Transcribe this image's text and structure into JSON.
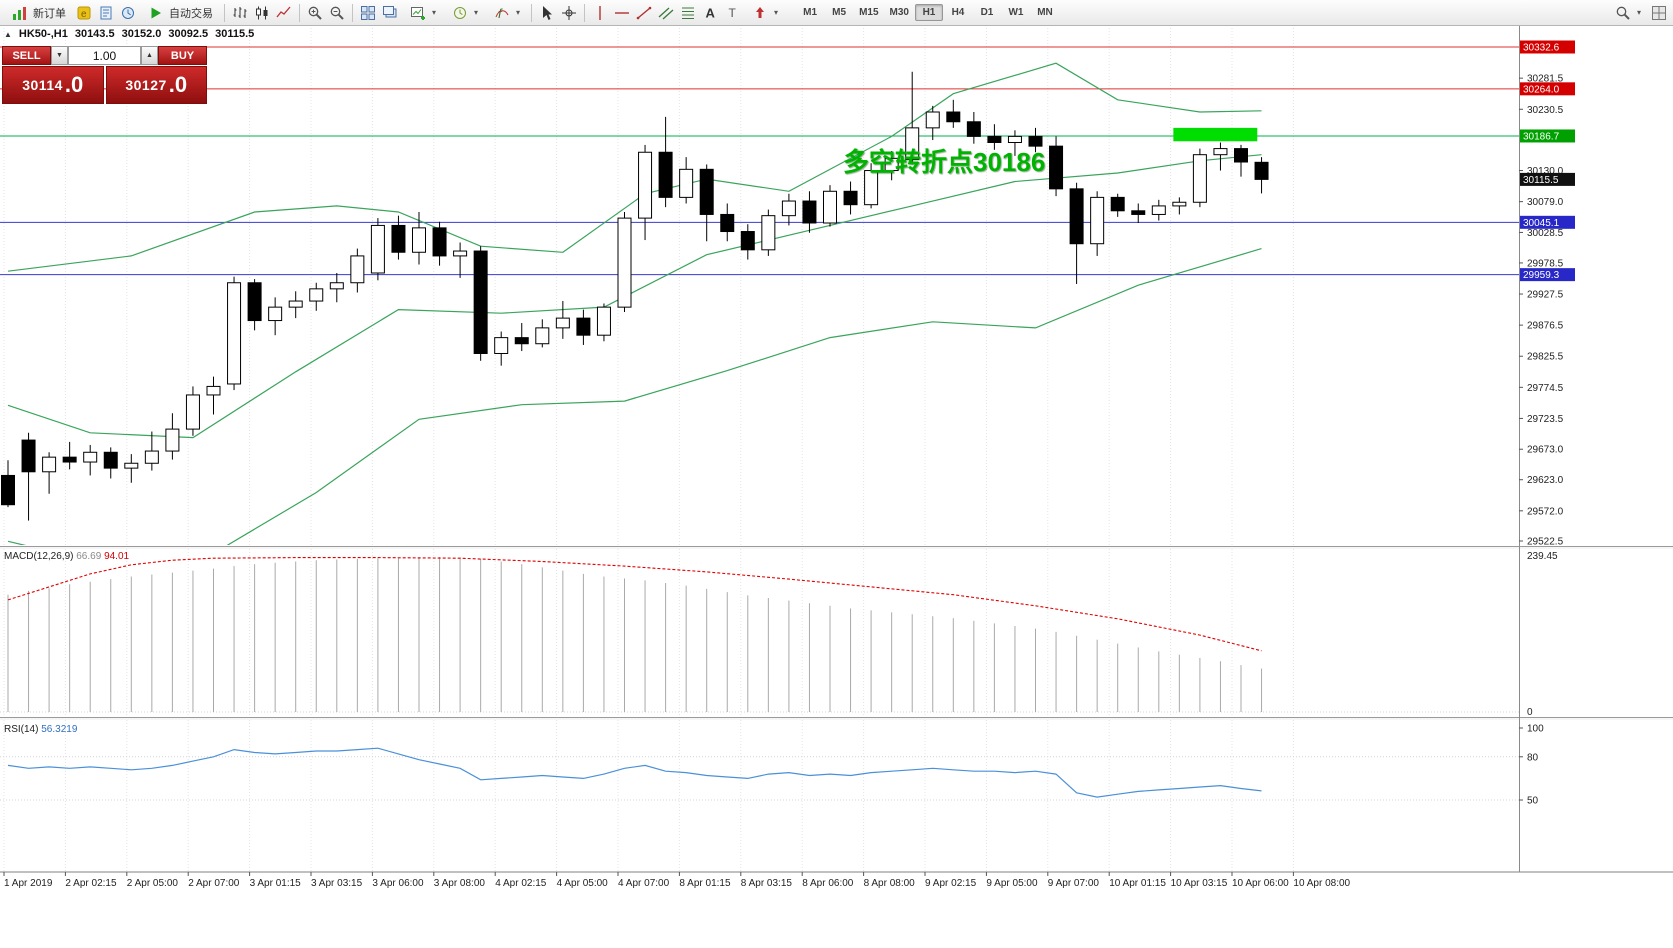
{
  "toolbar": {
    "new_order_label": "新订单",
    "autotrading_label": "自动交易",
    "caret": "▾",
    "timeframes": {
      "items": [
        "M1",
        "M5",
        "M15",
        "M30",
        "H1",
        "H4",
        "D1",
        "W1",
        "MN"
      ],
      "active": "H1"
    },
    "icon_names": [
      "new-order-icon",
      "metaeditor-icon",
      "profiles-icon",
      "market-watch-icon",
      "play-icon",
      "bar-chart-icon",
      "candlestick-chart-icon",
      "line-chart-icon",
      "zoom-in-icon",
      "zoom-out-icon",
      "tile-windows-icon",
      "cascade-windows-icon",
      "new-chart-icon",
      "period-icon",
      "indicators-icon",
      "cursor-icon",
      "crosshair-icon",
      "vertical-line-icon",
      "horizontal-line-icon",
      "trendline-icon",
      "channel-icon",
      "fibonacci-icon",
      "text-tool-icon",
      "label-tool-icon",
      "arrows-tool-icon",
      "search-icon",
      "layout-icon"
    ]
  },
  "quote_bar": {
    "expander": "▲",
    "symbol": "HK50-,H1",
    "open": "30143.5",
    "high": "30152.0",
    "low": "30092.5",
    "close": "30115.5"
  },
  "trade_panel": {
    "sell_label": "SELL",
    "buy_label": "BUY",
    "volume": "1.00",
    "spinner_down": "▼",
    "spinner_up": "▲",
    "sell_price": "30114",
    "sell_price_frac": ".0",
    "buy_price": "30127",
    "buy_price_frac": ".0",
    "panel_color": "#c01e1e"
  },
  "annotation": {
    "text": "多空转折点30186",
    "color": "#00b300"
  },
  "chart_data": {
    "type": "candlestick",
    "symbol": "HK50",
    "timeframe": "H1",
    "y_axis": {
      "max": 30332.6,
      "min": 29522.5,
      "ticks": [
        30281.5,
        30230.5,
        30130.0,
        30079.0,
        30028.5,
        29978.5,
        29927.5,
        29876.5,
        29825.5,
        29774.5,
        29723.5,
        29673.0,
        29623.0,
        29572.0,
        29522.5
      ]
    },
    "price_lines": [
      {
        "price": 30332.6,
        "color": "#e03030",
        "badge": "#d40000",
        "type": "resistance"
      },
      {
        "price": 30264.0,
        "color": "#e03030",
        "badge": "#d40000",
        "type": "resistance"
      },
      {
        "price": 30186.7,
        "color": "#00b050",
        "badge": "#00a000",
        "type": "pivot"
      },
      {
        "price": 30045.1,
        "color": "#3a3ad0",
        "badge": "#2828c8",
        "type": "support"
      },
      {
        "price": 29959.3,
        "color": "#3a3ad0",
        "badge": "#2828c8",
        "type": "support"
      }
    ],
    "current_price": {
      "value": 30115.5,
      "badge": "#111111"
    },
    "highlight_box": {
      "bar_from": 57,
      "bar_to": 60.5,
      "price_from": 30178,
      "price_to": 30200,
      "color": "#00dd00"
    },
    "candles": [
      [
        29630,
        29655,
        29578,
        29582
      ],
      [
        29688,
        29700,
        29556,
        29636
      ],
      [
        29636,
        29668,
        29600,
        29660
      ],
      [
        29660,
        29685,
        29640,
        29652
      ],
      [
        29652,
        29680,
        29630,
        29668
      ],
      [
        29668,
        29676,
        29625,
        29642
      ],
      [
        29642,
        29665,
        29618,
        29650
      ],
      [
        29650,
        29702,
        29638,
        29670
      ],
      [
        29670,
        29732,
        29656,
        29706
      ],
      [
        29706,
        29776,
        29695,
        29762
      ],
      [
        29762,
        29792,
        29730,
        29776
      ],
      [
        29780,
        29956,
        29770,
        29946
      ],
      [
        29946,
        29952,
        29868,
        29884
      ],
      [
        29884,
        29922,
        29860,
        29906
      ],
      [
        29906,
        29932,
        29888,
        29916
      ],
      [
        29916,
        29946,
        29900,
        29936
      ],
      [
        29936,
        29962,
        29914,
        29946
      ],
      [
        29946,
        30002,
        29930,
        29990
      ],
      [
        29962,
        30052,
        29950,
        30040
      ],
      [
        30040,
        30056,
        29984,
        29996
      ],
      [
        29996,
        30062,
        29976,
        30036
      ],
      [
        30036,
        30046,
        29974,
        29990
      ],
      [
        29990,
        30012,
        29954,
        29998
      ],
      [
        29998,
        30006,
        29818,
        29830
      ],
      [
        29830,
        29866,
        29810,
        29856
      ],
      [
        29856,
        29880,
        29834,
        29846
      ],
      [
        29846,
        29886,
        29840,
        29872
      ],
      [
        29872,
        29916,
        29854,
        29888
      ],
      [
        29888,
        29902,
        29844,
        29860
      ],
      [
        29860,
        29912,
        29850,
        29906
      ],
      [
        29906,
        30062,
        29898,
        30052
      ],
      [
        30052,
        30172,
        30016,
        30160
      ],
      [
        30160,
        30218,
        30070,
        30086
      ],
      [
        30086,
        30152,
        30076,
        30132
      ],
      [
        30132,
        30140,
        30014,
        30058
      ],
      [
        30058,
        30076,
        30014,
        30030
      ],
      [
        30030,
        30042,
        29984,
        30000
      ],
      [
        30000,
        30066,
        29990,
        30056
      ],
      [
        30056,
        30092,
        30040,
        30080
      ],
      [
        30080,
        30096,
        30028,
        30044
      ],
      [
        30044,
        30106,
        30038,
        30096
      ],
      [
        30096,
        30112,
        30058,
        30074
      ],
      [
        30074,
        30142,
        30068,
        30130
      ],
      [
        30130,
        30162,
        30114,
        30150
      ],
      [
        30148,
        30292,
        30140,
        30200
      ],
      [
        30200,
        30236,
        30180,
        30226
      ],
      [
        30226,
        30246,
        30200,
        30210
      ],
      [
        30210,
        30226,
        30174,
        30186
      ],
      [
        30186,
        30206,
        30164,
        30176
      ],
      [
        30176,
        30196,
        30154,
        30186
      ],
      [
        30186,
        30200,
        30160,
        30170
      ],
      [
        30170,
        30186,
        30088,
        30100
      ],
      [
        30100,
        30110,
        29944,
        30010
      ],
      [
        30010,
        30096,
        29990,
        30086
      ],
      [
        30086,
        30092,
        30054,
        30064
      ],
      [
        30064,
        30076,
        30044,
        30058
      ],
      [
        30058,
        30082,
        30048,
        30072
      ],
      [
        30072,
        30086,
        30058,
        30078
      ],
      [
        30078,
        30166,
        30070,
        30156
      ],
      [
        30156,
        30176,
        30130,
        30166
      ],
      [
        30166,
        30172,
        30120,
        30144
      ],
      [
        30143.5,
        30152,
        30092.5,
        30115.5
      ]
    ],
    "bollinger": {
      "color": "#3aa45c",
      "upper": [
        [
          0,
          29965
        ],
        [
          6,
          29990
        ],
        [
          12,
          30062
        ],
        [
          16,
          30072
        ],
        [
          19,
          30062
        ],
        [
          23,
          30006
        ],
        [
          27,
          29996
        ],
        [
          31,
          30092
        ],
        [
          34,
          30116
        ],
        [
          38,
          30096
        ],
        [
          43,
          30186
        ],
        [
          46,
          30256
        ],
        [
          51,
          30306
        ],
        [
          54,
          30246
        ],
        [
          58,
          30226
        ],
        [
          61,
          30228
        ]
      ],
      "middle": [
        [
          0,
          29745
        ],
        [
          4,
          29700
        ],
        [
          9,
          29692
        ],
        [
          14,
          29800
        ],
        [
          19,
          29902
        ],
        [
          24,
          29896
        ],
        [
          29,
          29906
        ],
        [
          34,
          29992
        ],
        [
          39,
          30032
        ],
        [
          44,
          30072
        ],
        [
          49,
          30112
        ],
        [
          54,
          30126
        ],
        [
          58,
          30146
        ],
        [
          61,
          30156
        ]
      ],
      "lower": [
        [
          0,
          29522
        ],
        [
          5,
          29482
        ],
        [
          10,
          29502
        ],
        [
          15,
          29602
        ],
        [
          20,
          29722
        ],
        [
          25,
          29746
        ],
        [
          30,
          29752
        ],
        [
          35,
          29802
        ],
        [
          40,
          29856
        ],
        [
          45,
          29882
        ],
        [
          50,
          29872
        ],
        [
          55,
          29942
        ],
        [
          61,
          30002
        ]
      ]
    },
    "macd": {
      "label": "MACD(12,26,9)",
      "value": "66.69",
      "signal": "94.01",
      "scale_max": "239.45",
      "scale_min": "0",
      "histogram": [
        180,
        186,
        190,
        196,
        200,
        204,
        208,
        211,
        214,
        217,
        220,
        224,
        227,
        229,
        231,
        233,
        234,
        235,
        236,
        237,
        238,
        238,
        237,
        235,
        231,
        227,
        222,
        217,
        212,
        208,
        205,
        202,
        198,
        194,
        189,
        184,
        179,
        175,
        171,
        167,
        163,
        159,
        156,
        153,
        150,
        147,
        144,
        140,
        136,
        132,
        128,
        123,
        117,
        111,
        105,
        99,
        93,
        88,
        83,
        78,
        72,
        66.69
      ],
      "signal_points": [
        [
          0,
          172
        ],
        [
          2,
          192
        ],
        [
          4,
          212
        ],
        [
          6,
          226
        ],
        [
          8,
          233
        ],
        [
          10,
          236
        ],
        [
          14,
          237
        ],
        [
          18,
          237
        ],
        [
          22,
          236
        ],
        [
          26,
          231
        ],
        [
          30,
          224
        ],
        [
          34,
          215
        ],
        [
          38,
          204
        ],
        [
          42,
          192
        ],
        [
          46,
          180
        ],
        [
          50,
          163
        ],
        [
          54,
          143
        ],
        [
          58,
          118
        ],
        [
          61,
          94
        ]
      ]
    },
    "rsi": {
      "label": "RSI(14)",
      "value": "56.3219",
      "scale": [
        100,
        80,
        50
      ],
      "values": [
        74,
        72,
        73,
        72,
        73,
        72,
        71,
        72,
        74,
        77,
        80,
        85,
        83,
        82,
        83,
        84,
        84,
        85,
        86,
        82,
        78,
        75,
        72,
        64,
        65,
        66,
        67,
        66,
        65,
        68,
        72,
        74,
        70,
        69,
        67,
        66,
        65,
        68,
        69,
        67,
        68,
        67,
        69,
        70,
        71,
        72,
        71,
        70,
        70,
        69,
        70,
        68,
        55,
        52,
        54,
        56,
        57,
        58,
        59,
        60,
        58,
        56.32
      ]
    },
    "time_labels": [
      "1 Apr 2019",
      "2 Apr 02:15",
      "2 Apr 05:00",
      "2 Apr 07:00",
      "3 Apr 01:15",
      "3 Apr 03:15",
      "3 Apr 06:00",
      "3 Apr 08:00",
      "4 Apr 02:15",
      "4 Apr 05:00",
      "4 Apr 07:00",
      "8 Apr 01:15",
      "8 Apr 03:15",
      "8 Apr 06:00",
      "8 Apr 08:00",
      "9 Apr 02:15",
      "9 Apr 05:00",
      "9 Apr 07:00",
      "10 Apr 01:15",
      "10 Apr 03:15",
      "10 Apr 06:00",
      "10 Apr 08:00"
    ]
  }
}
